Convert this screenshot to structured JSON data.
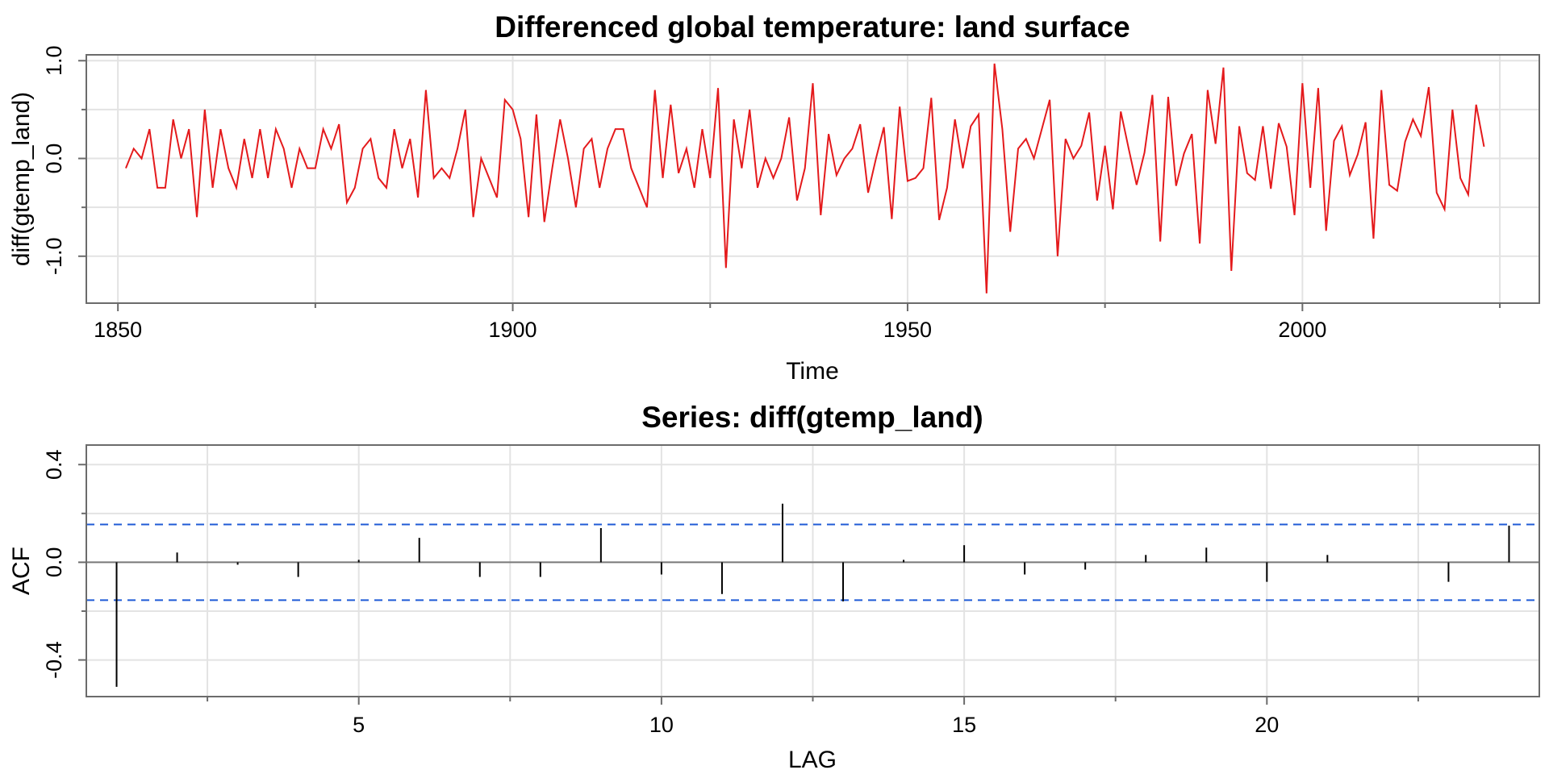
{
  "chart_data": [
    {
      "type": "line",
      "title": "Differenced global temperature: land surface",
      "xlabel": "Time",
      "ylabel": "diff(gtemp_land)",
      "xlim": [
        1846,
        2030
      ],
      "ylim": [
        -1.48,
        1.06
      ],
      "x_ticks": [
        1850,
        1900,
        1950,
        2000
      ],
      "x_tick_labels": [
        "1850",
        "1900",
        "1950",
        "2000"
      ],
      "y_ticks": [
        1.0,
        0.0,
        -1.0
      ],
      "y_tick_labels": [
        "1.0",
        "0.0",
        "-1.0"
      ],
      "grid": true,
      "line_color": "#e41a1c",
      "series": [
        {
          "x_start": 1851,
          "x_step": 1,
          "values": [
            -0.1,
            0.1,
            0.0,
            0.3,
            -0.3,
            -0.3,
            0.4,
            0.0,
            0.3,
            -0.6,
            0.5,
            -0.3,
            0.3,
            -0.1,
            -0.3,
            0.2,
            -0.2,
            0.3,
            -0.2,
            0.3,
            0.1,
            -0.3,
            0.1,
            -0.1,
            -0.1,
            0.3,
            0.1,
            0.35,
            -0.45,
            -0.3,
            0.1,
            0.2,
            -0.2,
            -0.3,
            0.3,
            -0.1,
            0.2,
            -0.4,
            0.7,
            -0.2,
            -0.1,
            -0.2,
            0.1,
            0.5,
            -0.6,
            0.0,
            -0.2,
            -0.4,
            0.6,
            0.5,
            0.2,
            -0.6,
            0.45,
            -0.65,
            -0.1,
            0.4,
            0.0,
            -0.5,
            0.1,
            0.2,
            -0.3,
            0.1,
            0.3,
            0.3,
            -0.1,
            -0.3,
            -0.5,
            0.7,
            -0.2,
            0.55,
            -0.15,
            0.1,
            -0.3,
            0.3,
            -0.2,
            0.72,
            -1.12,
            0.4,
            -0.1,
            0.5,
            -0.3,
            0.0,
            -0.2,
            0.0,
            0.42,
            -0.43,
            -0.1,
            0.77,
            -0.58,
            0.25,
            -0.17,
            0.0,
            0.1,
            0.35,
            -0.35,
            0.0,
            0.32,
            -0.62,
            0.53,
            -0.23,
            -0.2,
            -0.1,
            0.62,
            -0.63,
            -0.3,
            0.4,
            -0.1,
            0.33,
            0.45,
            -1.38,
            0.97,
            0.3,
            -0.75,
            0.1,
            0.2,
            0.0,
            0.3,
            0.6,
            -1.0,
            0.2,
            0.0,
            0.13,
            0.47,
            -0.43,
            0.13,
            -0.52,
            0.48,
            0.1,
            -0.27,
            0.06,
            0.65,
            -0.85,
            0.63,
            -0.28,
            0.05,
            0.25,
            -0.87,
            0.7,
            0.15,
            0.93,
            -1.15,
            0.33,
            -0.15,
            -0.22,
            0.33,
            -0.31,
            0.36,
            0.12,
            -0.58,
            0.77,
            -0.3,
            0.72,
            -0.74,
            0.18,
            0.33,
            -0.17,
            0.04,
            0.37,
            -0.82,
            0.7,
            -0.27,
            -0.33,
            0.17,
            0.4,
            0.23,
            0.73,
            -0.35,
            -0.52,
            0.5,
            -0.2,
            -0.37,
            0.55,
            0.12
          ]
        }
      ]
    },
    {
      "type": "bar",
      "title": "Series:  diff(gtemp_land)",
      "xlabel": "LAG",
      "ylabel": "ACF",
      "xlim": [
        0.5,
        24.5
      ],
      "ylim": [
        -0.55,
        0.48
      ],
      "x_ticks": [
        5,
        10,
        15,
        20
      ],
      "x_tick_labels": [
        "5",
        "10",
        "15",
        "20"
      ],
      "y_ticks": [
        0.4,
        0.0,
        -0.4
      ],
      "y_tick_labels": [
        "0.4",
        "0.0",
        "-0.4"
      ],
      "grid": true,
      "confidence_band": 0.155,
      "band_color": "#1f5bd6",
      "lags": [
        1,
        2,
        3,
        4,
        5,
        6,
        7,
        8,
        9,
        10,
        11,
        12,
        13,
        14,
        15,
        16,
        17,
        18,
        19,
        20,
        21,
        22,
        23,
        24
      ],
      "values": [
        -0.51,
        0.04,
        -0.01,
        -0.06,
        0.01,
        0.1,
        -0.06,
        -0.06,
        0.14,
        -0.05,
        -0.13,
        0.24,
        -0.16,
        0.01,
        0.07,
        -0.05,
        -0.03,
        0.03,
        0.06,
        -0.08,
        0.03,
        0.0,
        -0.08,
        0.15
      ]
    }
  ]
}
